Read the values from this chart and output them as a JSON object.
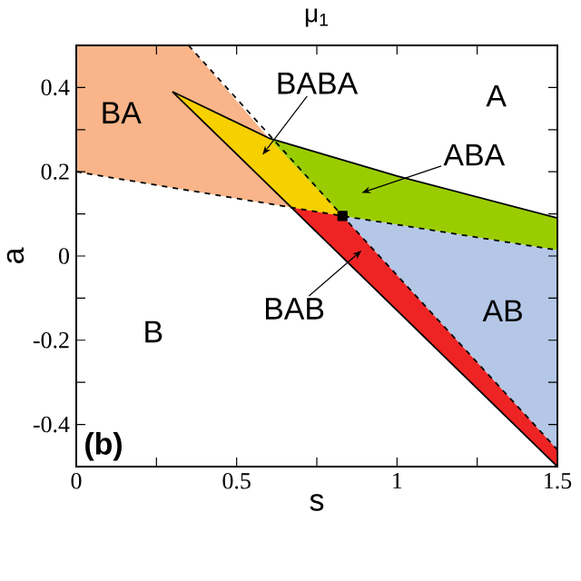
{
  "chart_data": {
    "type": "area",
    "xlabel": "s",
    "ylabel": "a",
    "xlim": [
      0,
      1.5
    ],
    "ylim": [
      -0.5,
      0.5
    ],
    "xticks": [
      0,
      {
        "value": 0.25,
        "label": null
      },
      0.5,
      {
        "value": 0.75,
        "label": null
      },
      1,
      {
        "value": 1.25,
        "label": null
      },
      1.5
    ],
    "yticks": [
      {
        "value": -0.5,
        "label": null
      },
      -0.4,
      {
        "value": -0.3,
        "label": null
      },
      -0.2,
      {
        "value": -0.1,
        "label": null
      },
      0,
      {
        "value": 0.1,
        "label": null
      },
      0.2,
      {
        "value": 0.3,
        "label": null
      },
      0.4,
      {
        "value": 0.5,
        "label": null
      }
    ],
    "series": [
      {
        "color": "#f9b489",
        "x": [
          0,
          0.35,
          0.6,
          0.3,
          0.67,
          0
        ],
        "values": [
          0.5,
          0.5,
          0.28,
          0.39,
          0.115,
          0.2
        ]
      },
      {
        "color": "#f7d000",
        "x": [
          0.3,
          0.6,
          0.83,
          0.67
        ],
        "values": [
          0.39,
          0.28,
          0.095,
          0.115
        ]
      },
      {
        "color": "#9acd00",
        "x": [
          0.6,
          1.0,
          1.5,
          1.5,
          0.83
        ],
        "values": [
          0.28,
          0.19,
          0.09,
          0.014,
          0.095
        ]
      },
      {
        "color": "#b4c7e7",
        "x": [
          0.83,
          1.5,
          1.5
        ],
        "values": [
          0.095,
          0.014,
          -0.46
        ]
      },
      {
        "color": "#ee2424",
        "x": [
          0.67,
          0.83,
          1.5,
          1.5
        ],
        "values": [
          0.115,
          0.095,
          -0.46,
          -0.5
        ]
      },
      {
        "type": "line",
        "color": "#000000",
        "line_style": "dashed",
        "x": [
          0,
          0.83,
          1.5
        ],
        "values": [
          0.2,
          0.095,
          0.014
        ]
      },
      {
        "type": "line",
        "color": "#000000",
        "line_style": "dashed",
        "x": [
          0.35,
          0.83,
          1.5
        ],
        "values": [
          0.5,
          0.095,
          -0.46
        ]
      },
      {
        "type": "line",
        "color": "#000000",
        "line_style": "solid",
        "x": [
          0.3,
          0.6,
          1.0,
          1.5
        ],
        "values": [
          0.39,
          0.28,
          0.19,
          0.09
        ]
      },
      {
        "type": "line",
        "color": "#000000",
        "line_style": "solid",
        "x": [
          0.3,
          1.5
        ],
        "values": [
          0.39,
          -0.5
        ]
      },
      {
        "type": "scatter",
        "color": "#000000",
        "marker": "square",
        "x": [
          0.83
        ],
        "values": [
          0.095
        ]
      }
    ],
    "annotations": [
      "A",
      "BA",
      "B",
      "AB",
      "BABA",
      "ABA",
      "BAB",
      "(b)",
      "μ$_{1}$"
    ]
  }
}
